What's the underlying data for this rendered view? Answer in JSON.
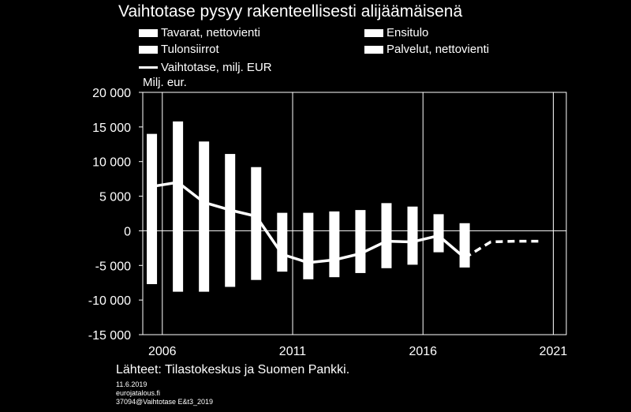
{
  "chart_data": {
    "type": "bar",
    "title": "Vaihtotase pysyy rakenteellisesti alijäämäisenä",
    "ylabel": "Milj. eur.",
    "ylim": [
      -15000,
      20000
    ],
    "yticks": [
      "20 000",
      "15 000",
      "10 000",
      "5 000",
      "0",
      "-5 000",
      "-10 000",
      "-15 000"
    ],
    "ytick_values": [
      20000,
      15000,
      10000,
      5000,
      0,
      -5000,
      -10000,
      -15000
    ],
    "xlim": [
      2005.25,
      2021.5
    ],
    "xticks": [
      "2006",
      "2011",
      "2016",
      "2021"
    ],
    "xtick_values": [
      2006,
      2011,
      2016,
      2021
    ],
    "bar_color": "#ffffff",
    "background": "#000000",
    "grid": "vertical",
    "legend": [
      {
        "label": "Tavarat, nettovienti",
        "kind": "bar"
      },
      {
        "label": "Ensitulo",
        "kind": "bar"
      },
      {
        "label": "Tulonsiirrot",
        "kind": "bar"
      },
      {
        "label": "Palvelut, nettovienti",
        "kind": "bar"
      },
      {
        "label": "Vaihtotase, milj. EUR",
        "kind": "line"
      }
    ],
    "bars": [
      {
        "x": 2005.6,
        "high": 14000,
        "low": -7700
      },
      {
        "x": 2006.6,
        "high": 15800,
        "low": -8800
      },
      {
        "x": 2007.6,
        "high": 12900,
        "low": -8800
      },
      {
        "x": 2008.6,
        "high": 11100,
        "low": -8100
      },
      {
        "x": 2009.6,
        "high": 9200,
        "low": -7100
      },
      {
        "x": 2010.6,
        "high": 2600,
        "low": -5900
      },
      {
        "x": 2011.6,
        "high": 2600,
        "low": -7000
      },
      {
        "x": 2012.6,
        "high": 2800,
        "low": -6700
      },
      {
        "x": 2013.6,
        "high": 3000,
        "low": -6100
      },
      {
        "x": 2014.6,
        "high": 4000,
        "low": -5400
      },
      {
        "x": 2015.6,
        "high": 3500,
        "low": -4900
      },
      {
        "x": 2016.6,
        "high": 2400,
        "low": -3100
      },
      {
        "x": 2017.6,
        "high": 1100,
        "low": -5300
      }
    ],
    "line_actual": {
      "x": [
        2005.6,
        2006.6,
        2007.6,
        2008.6,
        2009.6,
        2010.6,
        2011.6,
        2012.6,
        2013.6,
        2014.6,
        2015.6,
        2016.6,
        2017.6
      ],
      "y": [
        6400,
        7000,
        4100,
        3000,
        2100,
        -3400,
        -4600,
        -4200,
        -3300,
        -1500,
        -1600,
        -700,
        -3900
      ]
    },
    "line_forecast": {
      "x": [
        2017.6,
        2018.6,
        2019.6,
        2020.6
      ],
      "y": [
        -3900,
        -1600,
        -1500,
        -1500
      ]
    }
  },
  "footer": {
    "source": "Lähteet: Tilastokeskus ja Suomen Pankki.",
    "date": "11.6.2019",
    "site": "eurojatalous.fi",
    "code": "37094@Vaihtotase E&t3_2019"
  }
}
